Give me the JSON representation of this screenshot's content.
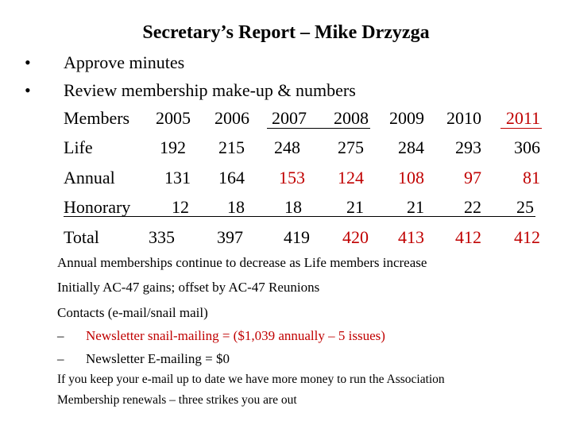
{
  "title": "Secretary’s Report – Mike Drzyzga",
  "bullets": [
    {
      "glyph": "•",
      "text": "Approve minutes"
    },
    {
      "glyph": "•",
      "text": "Review membership make-up & numbers"
    }
  ],
  "table": {
    "header_label": "Members",
    "years": [
      "2005",
      "2006",
      "2007",
      "2008",
      "2009",
      "2010",
      "2011"
    ],
    "rows": [
      {
        "label": "Life",
        "values": [
          "192",
          "215",
          "248",
          "275",
          "284",
          "293",
          "306"
        ]
      },
      {
        "label": "Annual",
        "values": [
          "131",
          "164",
          "153",
          "124",
          "108",
          "97",
          "81"
        ]
      },
      {
        "label": "Honorary",
        "values": [
          "12",
          "18",
          "18",
          "21",
          "21",
          "22",
          "25"
        ]
      },
      {
        "label": "Total",
        "values": [
          "335",
          "397",
          "419",
          "420",
          "413",
          "412",
          "412"
        ]
      }
    ]
  },
  "notes": [
    "Annual memberships continue to decrease as Life members increase",
    "Initially AC-47 gains; offset by AC-47 Reunions",
    "Contacts (e-mail/snail mail)"
  ],
  "sub_items": [
    {
      "dash": "–",
      "text": "Newsletter snail-mailing = ($1,039 annually – 5 issues)"
    },
    {
      "dash": "–",
      "text": "Newsletter E-mailing = $0"
    }
  ],
  "footer_notes": [
    "If you keep your e-mail up to date we have more money to run the Association",
    "Membership renewals – three strikes you are out"
  ],
  "colors": {
    "accent_red": "#c00000",
    "text": "#000000",
    "background": "#ffffff"
  }
}
